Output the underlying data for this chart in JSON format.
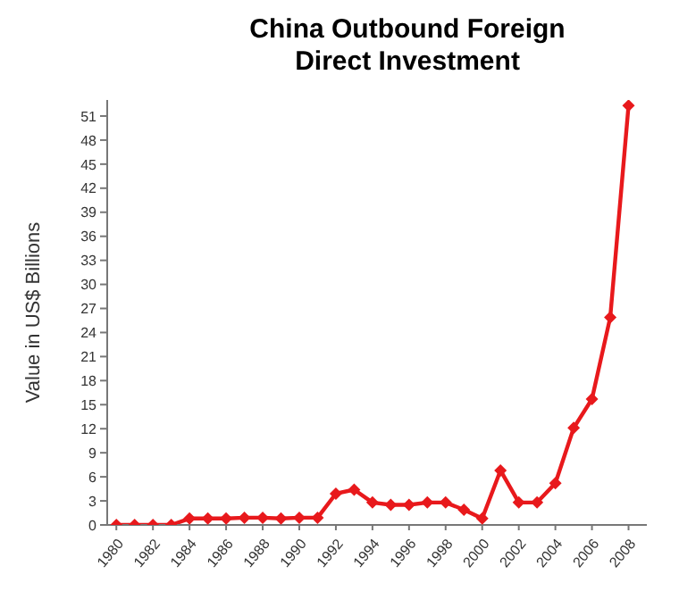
{
  "chart_data": {
    "type": "line",
    "title": "China Outbound Foreign Direct Investment",
    "ylabel": "Value in US$ Billions",
    "x": [
      1980,
      1981,
      1982,
      1983,
      1984,
      1985,
      1986,
      1987,
      1988,
      1989,
      1990,
      1991,
      1992,
      1993,
      1994,
      1995,
      1996,
      1997,
      1998,
      1999,
      2000,
      2001,
      2002,
      2003,
      2004,
      2005,
      2006,
      2007,
      2008
    ],
    "series": [
      {
        "color": "#e8191c",
        "values": [
          0,
          0,
          0,
          0,
          0.8,
          0.8,
          0.8,
          0.9,
          0.9,
          0.8,
          0.9,
          0.9,
          3.9,
          4.4,
          2.8,
          2.5,
          2.5,
          2.8,
          2.8,
          1.9,
          0.8,
          6.8,
          2.8,
          2.8,
          5.2,
          12.1,
          15.7,
          25.9,
          52.3
        ]
      }
    ],
    "xlim": [
      1979.5,
      2009
    ],
    "xticks": [
      1980,
      1982,
      1984,
      1986,
      1988,
      1990,
      1992,
      1994,
      1996,
      1998,
      2000,
      2002,
      2004,
      2006,
      2008
    ],
    "ylim": [
      0,
      53
    ],
    "yticks": [
      0,
      3,
      6,
      9,
      12,
      15,
      18,
      21,
      24,
      27,
      30,
      33,
      36,
      39,
      42,
      45,
      48,
      51
    ],
    "grid": false,
    "legend": false,
    "marker": "diamond",
    "line_style": "solid"
  }
}
